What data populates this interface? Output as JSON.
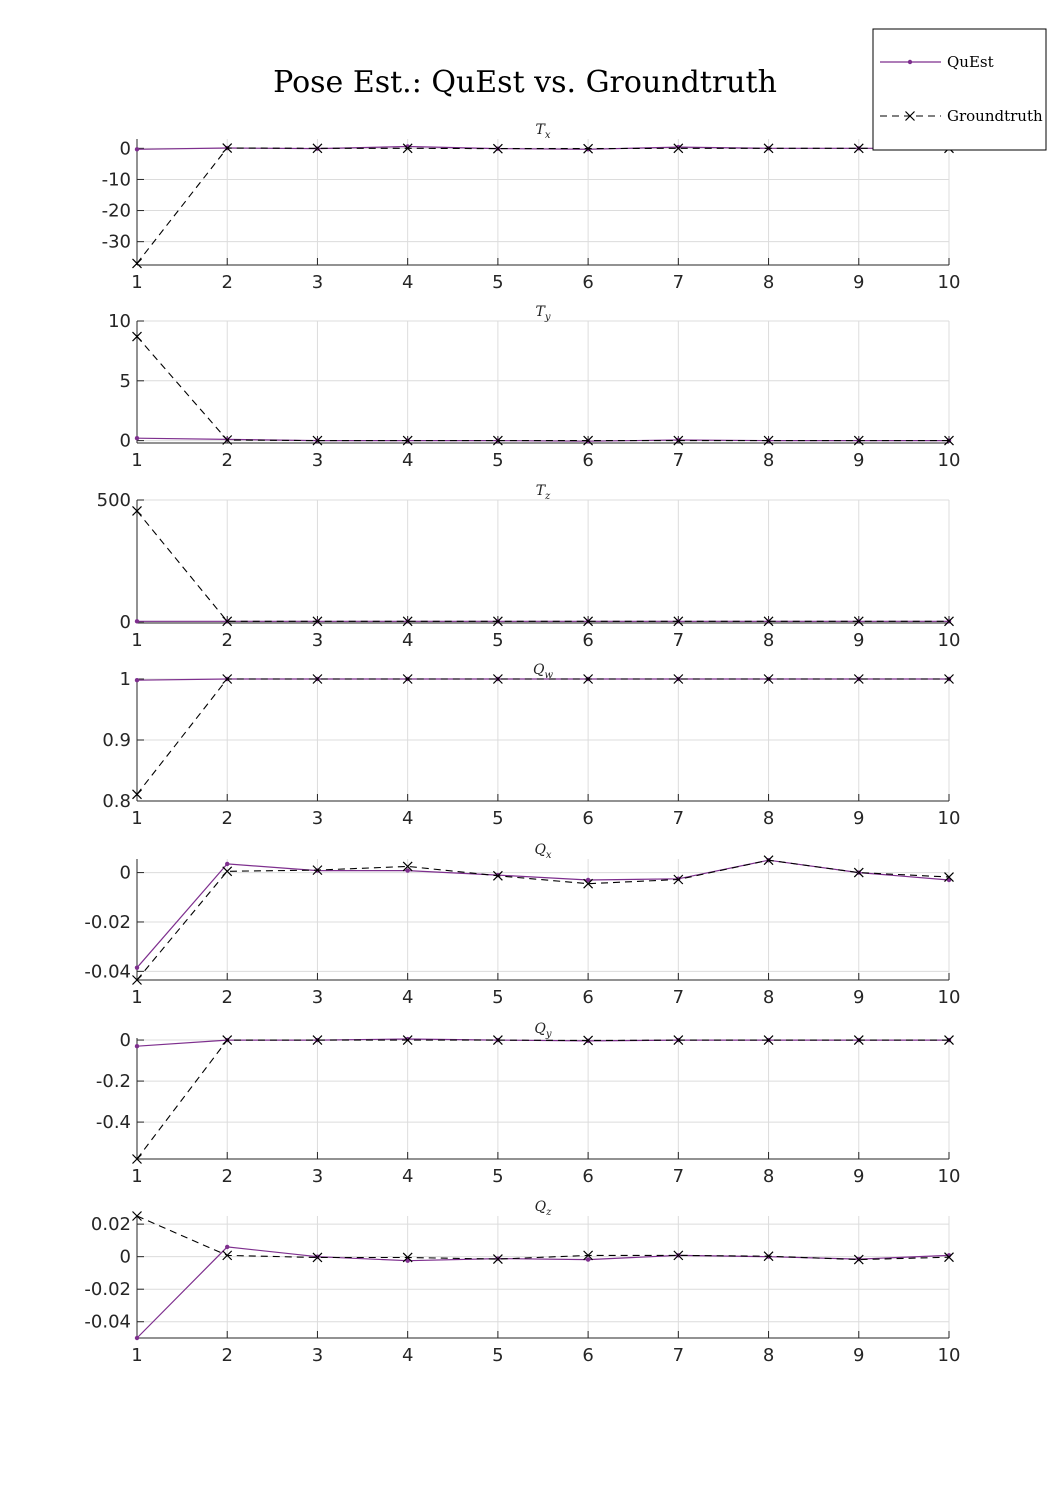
{
  "title": "Pose Est.: QuEst vs. Groundtruth",
  "legend": {
    "entries": [
      {
        "label": "QuEst",
        "color": "#7E2F8E",
        "style": "solid-dot"
      },
      {
        "label": "Groundtruth",
        "color": "#000000",
        "style": "dashed-x"
      }
    ],
    "placement": "top-right"
  },
  "colors": {
    "quest": "#7E2F8E",
    "groundtruth": "#000000",
    "grid": "#dcdcdc"
  },
  "chart_data": [
    {
      "type": "line",
      "title": "T_x",
      "title_main": "T",
      "title_sub": "x",
      "x": [
        1,
        2,
        3,
        4,
        5,
        6,
        7,
        8,
        9,
        10
      ],
      "xticks": [
        "1",
        "2",
        "3",
        "4",
        "5",
        "6",
        "7",
        "8",
        "9",
        "10"
      ],
      "ylim": [
        -37.5,
        3
      ],
      "yticks": [
        0,
        -10,
        -20,
        -30
      ],
      "ytick_labels": [
        "0",
        "-10",
        "-20",
        "-30"
      ],
      "grid": true,
      "series": [
        {
          "name": "QuEst",
          "values": [
            -0.3,
            0.1,
            -0.1,
            0.6,
            -0.1,
            -0.3,
            0.4,
            0.0,
            0.0,
            0.0
          ]
        },
        {
          "name": "Groundtruth",
          "values": [
            -37.0,
            0.1,
            0.0,
            0.0,
            -0.1,
            -0.1,
            0.0,
            0.0,
            0.0,
            0.0
          ]
        }
      ]
    },
    {
      "type": "line",
      "title": "T_y",
      "title_main": "T",
      "title_sub": "y",
      "x": [
        1,
        2,
        3,
        4,
        5,
        6,
        7,
        8,
        9,
        10
      ],
      "xticks": [
        "1",
        "2",
        "3",
        "4",
        "5",
        "6",
        "7",
        "8",
        "9",
        "10"
      ],
      "ylim": [
        -0.2,
        10
      ],
      "yticks": [
        10,
        5,
        0
      ],
      "ytick_labels": [
        "10",
        "5",
        "0"
      ],
      "grid": true,
      "series": [
        {
          "name": "QuEst",
          "values": [
            0.2,
            0.1,
            0.0,
            0.0,
            0.0,
            -0.05,
            0.05,
            0.0,
            0.0,
            0.0
          ]
        },
        {
          "name": "Groundtruth",
          "values": [
            8.7,
            0.05,
            0.0,
            0.0,
            0.0,
            0.0,
            0.0,
            0.0,
            0.0,
            0.0
          ]
        }
      ]
    },
    {
      "type": "line",
      "title": "T_z",
      "title_main": "T",
      "title_sub": "z",
      "x": [
        1,
        2,
        3,
        4,
        5,
        6,
        7,
        8,
        9,
        10
      ],
      "xticks": [
        "1",
        "2",
        "3",
        "4",
        "5",
        "6",
        "7",
        "8",
        "9",
        "10"
      ],
      "ylim": [
        -5,
        500
      ],
      "yticks": [
        500,
        0
      ],
      "ytick_labels": [
        "500",
        "0"
      ],
      "grid": true,
      "series": [
        {
          "name": "QuEst",
          "values": [
            2,
            2,
            2,
            2,
            2,
            2,
            2,
            2,
            2,
            2
          ]
        },
        {
          "name": "Groundtruth",
          "values": [
            455,
            2,
            2,
            2,
            2,
            2,
            2,
            2,
            2,
            2
          ]
        }
      ]
    },
    {
      "type": "line",
      "title": "Q_w",
      "title_main": "Q",
      "title_sub": "w",
      "x": [
        1,
        2,
        3,
        4,
        5,
        6,
        7,
        8,
        9,
        10
      ],
      "xticks": [
        "1",
        "2",
        "3",
        "4",
        "5",
        "6",
        "7",
        "8",
        "9",
        "10"
      ],
      "ylim": [
        0.8,
        1.0
      ],
      "yticks": [
        1,
        0.9,
        0.8
      ],
      "ytick_labels": [
        "1",
        "0.9",
        "0.8"
      ],
      "grid": true,
      "series": [
        {
          "name": "QuEst",
          "values": [
            0.998,
            1.0,
            1.0,
            1.0,
            1.0,
            1.0,
            1.0,
            1.0,
            1.0,
            1.0
          ]
        },
        {
          "name": "Groundtruth",
          "values": [
            0.811,
            1.0,
            1.0,
            1.0,
            1.0,
            1.0,
            1.0,
            1.0,
            1.0,
            1.0
          ]
        }
      ]
    },
    {
      "type": "line",
      "title": "Q_x",
      "title_main": "Q",
      "title_sub": "x",
      "x": [
        1,
        2,
        3,
        4,
        5,
        6,
        7,
        8,
        9,
        10
      ],
      "xticks": [
        "1",
        "2",
        "3",
        "4",
        "5",
        "6",
        "7",
        "8",
        "9",
        "10"
      ],
      "ylim": [
        -0.0435,
        0.0055
      ],
      "yticks": [
        0,
        -0.02,
        -0.04
      ],
      "ytick_labels": [
        "0",
        "-0.02",
        "-0.04"
      ],
      "grid": true,
      "series": [
        {
          "name": "QuEst",
          "values": [
            -0.0385,
            0.0035,
            0.0008,
            0.0008,
            -0.001,
            -0.003,
            -0.0025,
            0.005,
            0.0,
            -0.003
          ]
        },
        {
          "name": "Groundtruth",
          "values": [
            -0.0435,
            0.0005,
            0.001,
            0.0025,
            -0.0013,
            -0.0045,
            -0.0028,
            0.005,
            0.0,
            -0.0018
          ]
        }
      ]
    },
    {
      "type": "line",
      "title": "Q_y",
      "title_main": "Q",
      "title_sub": "y",
      "x": [
        1,
        2,
        3,
        4,
        5,
        6,
        7,
        8,
        9,
        10
      ],
      "xticks": [
        "1",
        "2",
        "3",
        "4",
        "5",
        "6",
        "7",
        "8",
        "9",
        "10"
      ],
      "ylim": [
        -0.58,
        0.01
      ],
      "yticks": [
        0,
        -0.2,
        -0.4
      ],
      "ytick_labels": [
        "0",
        "-0.2",
        "-0.4"
      ],
      "grid": true,
      "series": [
        {
          "name": "QuEst",
          "values": [
            -0.03,
            0.0,
            0.0,
            0.005,
            0.0,
            -0.004,
            0.0,
            0.0,
            0.0,
            0.0
          ]
        },
        {
          "name": "Groundtruth",
          "values": [
            -0.58,
            0.0,
            0.0,
            0.0,
            0.0,
            -0.002,
            0.0,
            0.0,
            0.0,
            0.0
          ]
        }
      ]
    },
    {
      "type": "line",
      "title": "Q_z",
      "title_main": "Q",
      "title_sub": "z",
      "x": [
        1,
        2,
        3,
        4,
        5,
        6,
        7,
        8,
        9,
        10
      ],
      "xticks": [
        "1",
        "2",
        "3",
        "4",
        "5",
        "6",
        "7",
        "8",
        "9",
        "10"
      ],
      "ylim": [
        -0.05,
        0.025
      ],
      "yticks": [
        0.02,
        0,
        -0.02,
        -0.04
      ],
      "ytick_labels": [
        "0.02",
        "0",
        "-0.02",
        "-0.04"
      ],
      "grid": true,
      "series": [
        {
          "name": "QuEst",
          "values": [
            -0.05,
            0.006,
            0.0,
            -0.0025,
            -0.0012,
            -0.0018,
            0.0008,
            0.0,
            -0.0015,
            0.0008
          ]
        },
        {
          "name": "Groundtruth",
          "values": [
            0.025,
            0.0008,
            -0.0005,
            -0.0005,
            -0.0015,
            0.0008,
            0.0008,
            0.0003,
            -0.0018,
            -0.0003
          ]
        }
      ]
    }
  ]
}
